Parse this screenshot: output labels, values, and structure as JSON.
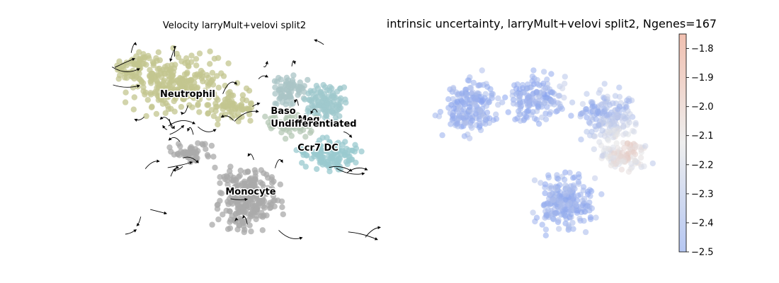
{
  "chart_data": [
    {
      "type": "scatter",
      "title": "Velocity larryMult+velovi split2",
      "overlay": "velocity streamlines",
      "axes_visible": false,
      "cluster_labels": [
        {
          "name": "Neutrophil",
          "color": "#c3c58f"
        },
        {
          "name": "Baso",
          "color": "#a9c4c6"
        },
        {
          "name": "Meg",
          "color": "#9fc8cc"
        },
        {
          "name": "Undifferentiated",
          "color": "#b6c8b5"
        },
        {
          "name": "Ccr7 DC",
          "color": "#99c9cf"
        },
        {
          "name": "Monocyte",
          "color": "#aaaaaa"
        }
      ]
    },
    {
      "type": "scatter",
      "title": "intrinsic uncertainty, larryMult+velovi split2, Ngenes=167",
      "axes_visible": false,
      "colormap": "coolwarm",
      "colorbar": {
        "range": [
          -2.5,
          -1.75
        ],
        "ticks": [
          -1.8,
          -1.9,
          -2.0,
          -2.1,
          -2.2,
          -2.3,
          -2.4,
          -2.5
        ],
        "tick_labels": [
          "−1.8",
          "−1.9",
          "−2.0",
          "−2.1",
          "−2.2",
          "−2.3",
          "−2.4",
          "−2.5"
        ]
      }
    }
  ]
}
